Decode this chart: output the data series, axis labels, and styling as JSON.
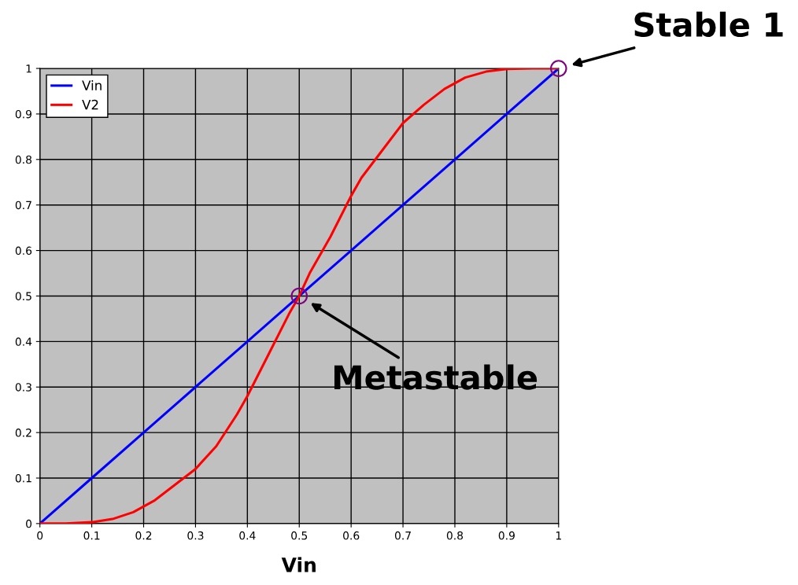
{
  "chart_data": {
    "type": "line",
    "xlabel": "Vin",
    "series": [
      {
        "name": "Vin",
        "color": "#0000ff",
        "x": [
          0,
          0.1,
          0.2,
          0.3,
          0.4,
          0.5,
          0.6,
          0.7,
          0.8,
          0.9,
          1
        ],
        "values": [
          0,
          0.1,
          0.2,
          0.3,
          0.4,
          0.5,
          0.6,
          0.7,
          0.8,
          0.9,
          1
        ]
      },
      {
        "name": "V2",
        "color": "#ff0000",
        "x": [
          0,
          0.05,
          0.1,
          0.14,
          0.18,
          0.22,
          0.26,
          0.3,
          0.34,
          0.38,
          0.4,
          0.44,
          0.48,
          0.5,
          0.52,
          0.56,
          0.6,
          0.62,
          0.66,
          0.7,
          0.74,
          0.78,
          0.82,
          0.86,
          0.9,
          0.95,
          1
        ],
        "values": [
          0,
          0,
          0.003,
          0.01,
          0.025,
          0.05,
          0.085,
          0.12,
          0.17,
          0.24,
          0.28,
          0.37,
          0.46,
          0.5,
          0.55,
          0.63,
          0.72,
          0.76,
          0.82,
          0.88,
          0.92,
          0.955,
          0.98,
          0.993,
          0.999,
          1,
          1
        ]
      }
    ],
    "xlim": [
      0,
      1
    ],
    "ylim": [
      0,
      1
    ],
    "xticks": [
      0,
      0.1,
      0.2,
      0.3,
      0.4,
      0.5,
      0.6,
      0.7,
      0.8,
      0.9,
      1
    ],
    "yticks": [
      0,
      0.1,
      0.2,
      0.3,
      0.4,
      0.5,
      0.6,
      0.7,
      0.8,
      0.9,
      1
    ],
    "grid": true,
    "legend": "top left",
    "marker": "none",
    "line_style": "solid",
    "annotations": [
      {
        "text": "Stable 1",
        "x": 1,
        "y": 1
      },
      {
        "text": "Metastable",
        "x": 0.5,
        "y": 0.5
      }
    ]
  }
}
